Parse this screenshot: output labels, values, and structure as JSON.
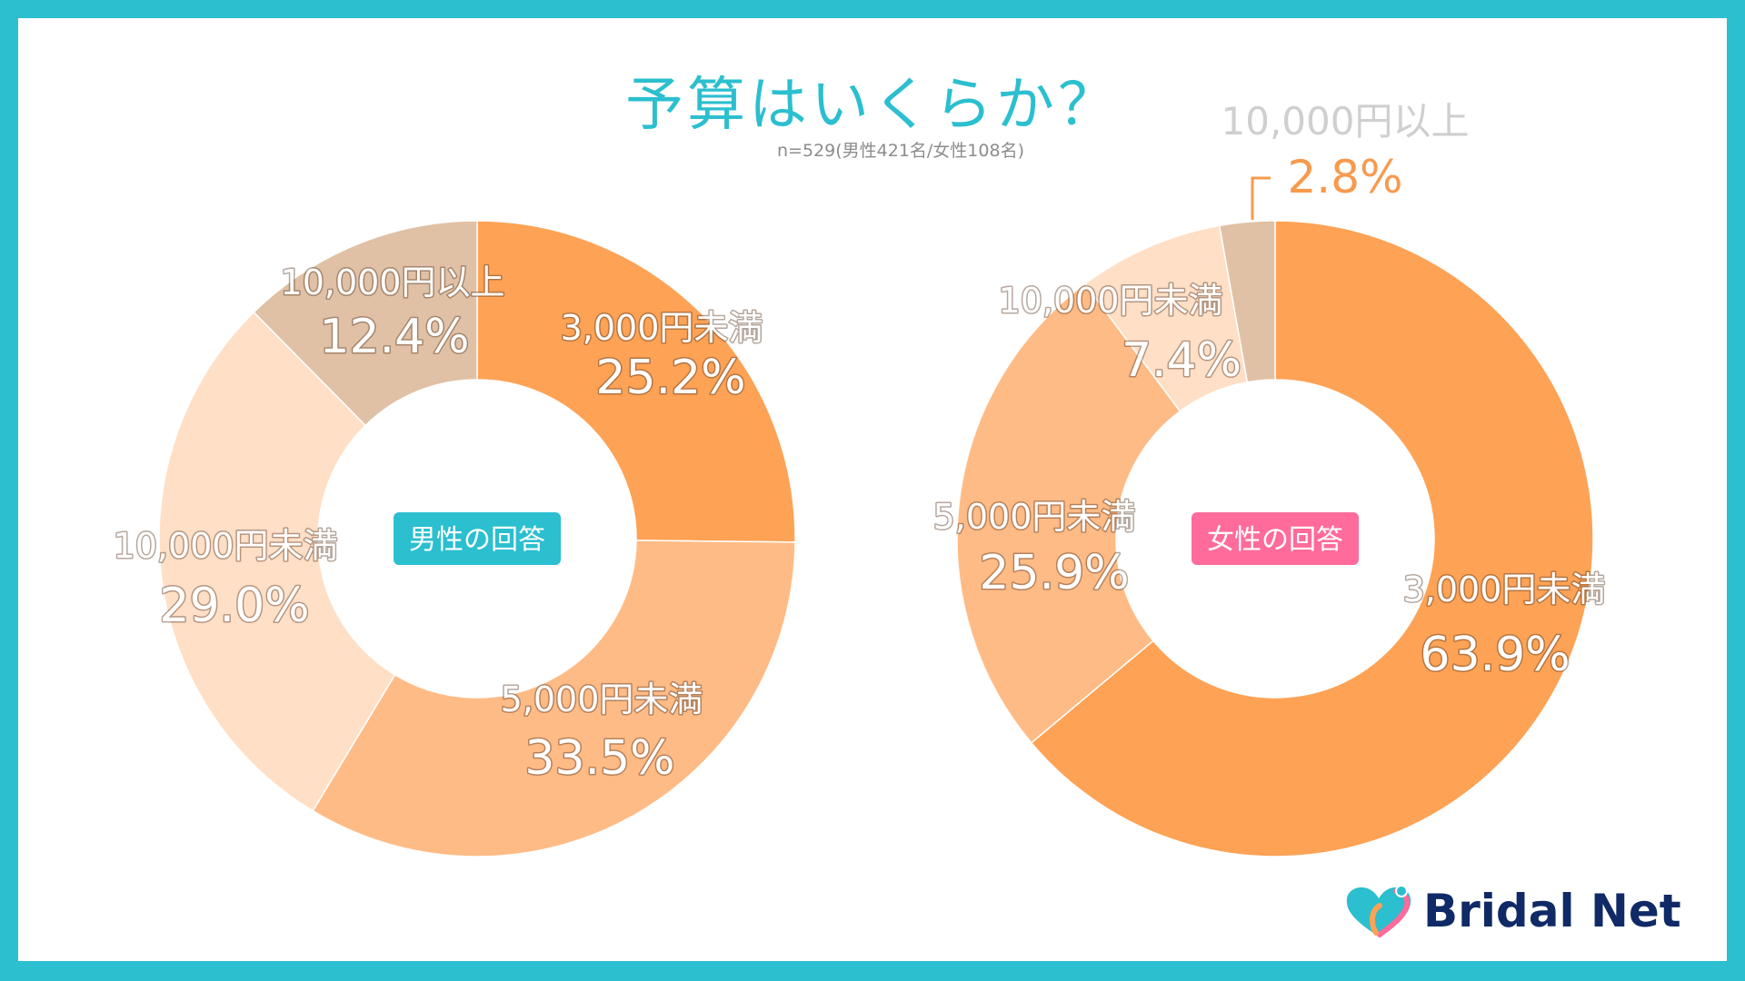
{
  "title": "予算はいくらか？",
  "subtitle": "n=529(男性421名/女性108名)",
  "brand": {
    "name": "Bridal Net",
    "icon": "heart-logo-icon",
    "text_color": "#0f2a66",
    "accent_color": "#2bbfcf"
  },
  "chart_data": [
    {
      "type": "donut",
      "center_label": "男性の回答",
      "center_color": "#2bbfcf",
      "slices": [
        {
          "label": "3,000円未満",
          "value": 25.2,
          "value_label": "25.2%",
          "color": "#fea255"
        },
        {
          "label": "5,000円未満",
          "value": 33.5,
          "value_label": "33.5%",
          "color": "#ffbb85"
        },
        {
          "label": "10,000円未満",
          "value": 29.0,
          "value_label": "29.0%",
          "color": "#ffdfc6"
        },
        {
          "label": "10,000円以上",
          "value": 12.4,
          "value_label": "12.4%",
          "color": "#e0c1a5"
        }
      ]
    },
    {
      "type": "donut",
      "center_label": "女性の回答",
      "center_color": "#ff6b9b",
      "slices": [
        {
          "label": "3,000円未満",
          "value": 63.9,
          "value_label": "63.9%",
          "color": "#fea255"
        },
        {
          "label": "5,000円未満",
          "value": 25.9,
          "value_label": "25.9%",
          "color": "#ffbb85"
        },
        {
          "label": "10,000円未満",
          "value": 7.4,
          "value_label": "7.4%",
          "color": "#ffdfc6"
        },
        {
          "label": "10,000円以上",
          "value": 2.8,
          "value_label": "2.8%",
          "color": "#e0c1a5"
        }
      ]
    }
  ]
}
